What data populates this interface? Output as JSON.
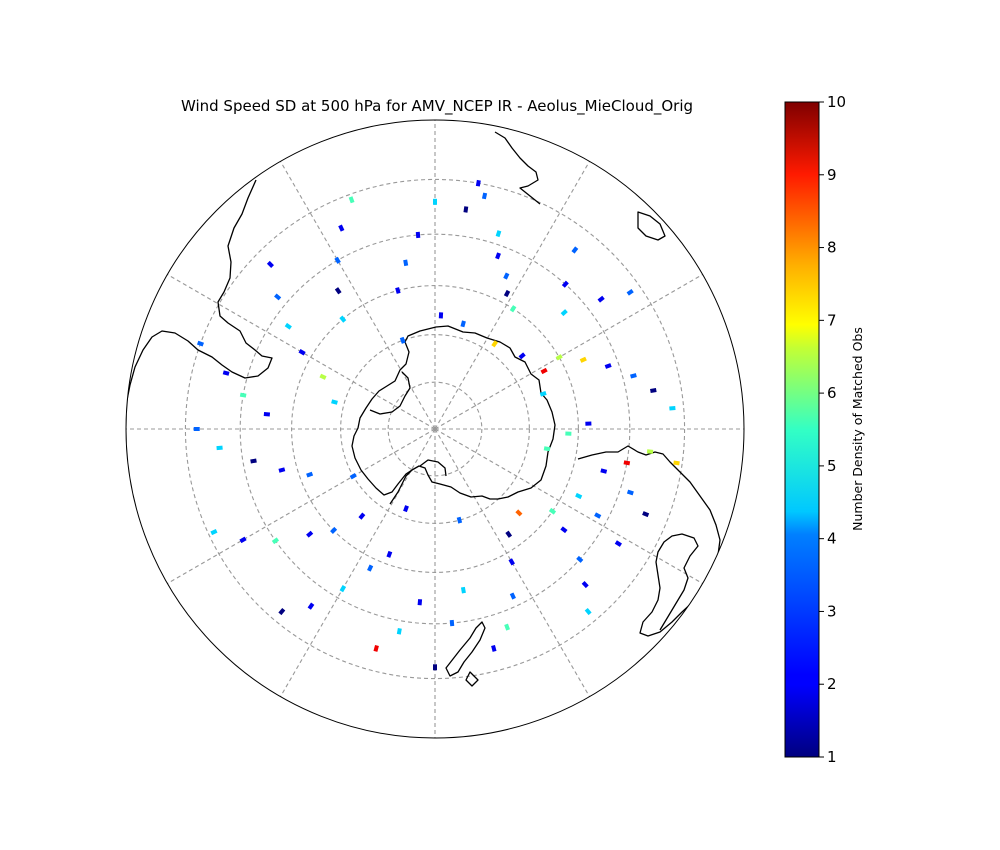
{
  "chart_data": {
    "type": "heatmap",
    "projection": "south-polar-stereographic",
    "title": "Wind Speed SD at 500 hPa for AMV_NCEP IR - Aeolus_MieCloud_Orig",
    "colormap": "jet",
    "colorbar": {
      "label": "Number Density of Matched Obs",
      "range": [
        1,
        10
      ],
      "ticks": [
        "1",
        "2",
        "3",
        "4",
        "5",
        "6",
        "7",
        "8",
        "9",
        "10"
      ],
      "placement": "right"
    },
    "gridlines": {
      "visible": true,
      "latitudes": [
        -80,
        -70,
        -60,
        -50,
        -40
      ],
      "longitude_step": 30
    },
    "cells": [
      {
        "lon": 10,
        "lat": -40,
        "value": 2
      },
      {
        "lon": 12,
        "lat": -42,
        "value": 3
      },
      {
        "lon": 8,
        "lat": -45,
        "value": 1
      },
      {
        "lon": 18,
        "lat": -48,
        "value": 4
      },
      {
        "lon": 20,
        "lat": -52,
        "value": 2
      },
      {
        "lon": 25,
        "lat": -55,
        "value": 3
      },
      {
        "lon": 28,
        "lat": -58,
        "value": 1
      },
      {
        "lon": 33,
        "lat": -60,
        "value": 5
      },
      {
        "lon": 38,
        "lat": -44,
        "value": 3
      },
      {
        "lon": 42,
        "lat": -50,
        "value": 2
      },
      {
        "lon": 48,
        "lat": -54,
        "value": 4
      },
      {
        "lon": 52,
        "lat": -47,
        "value": 2
      },
      {
        "lon": 55,
        "lat": -42,
        "value": 3
      },
      {
        "lon": 60,
        "lat": -60,
        "value": 6
      },
      {
        "lon": 65,
        "lat": -56,
        "value": 7
      },
      {
        "lon": 70,
        "lat": -52,
        "value": 2
      },
      {
        "lon": 75,
        "lat": -48,
        "value": 3
      },
      {
        "lon": 80,
        "lat": -45,
        "value": 1
      },
      {
        "lon": 85,
        "lat": -42,
        "value": 4
      },
      {
        "lon": 88,
        "lat": -58,
        "value": 2
      },
      {
        "lon": 92,
        "lat": -62,
        "value": 5
      },
      {
        "lon": 96,
        "lat": -46,
        "value": 6
      },
      {
        "lon": 98,
        "lat": -41,
        "value": 7
      },
      {
        "lon": 100,
        "lat": -50,
        "value": 9
      },
      {
        "lon": 104,
        "lat": -54,
        "value": 2
      },
      {
        "lon": 108,
        "lat": -48,
        "value": 3
      },
      {
        "lon": 112,
        "lat": -44,
        "value": 1
      },
      {
        "lon": 115,
        "lat": -57,
        "value": 4
      },
      {
        "lon": 118,
        "lat": -52,
        "value": 3
      },
      {
        "lon": 122,
        "lat": -46,
        "value": 2
      },
      {
        "lon": 125,
        "lat": -60,
        "value": 5
      },
      {
        "lon": 128,
        "lat": -56,
        "value": 2
      },
      {
        "lon": 132,
        "lat": -50,
        "value": 3
      },
      {
        "lon": 136,
        "lat": -46,
        "value": 2
      },
      {
        "lon": 140,
        "lat": -42,
        "value": 4
      },
      {
        "lon": 145,
        "lat": -63,
        "value": 1
      },
      {
        "lon": 150,
        "lat": -58,
        "value": 2
      },
      {
        "lon": 155,
        "lat": -52,
        "value": 3
      },
      {
        "lon": 160,
        "lat": -47,
        "value": 5
      },
      {
        "lon": 165,
        "lat": -44,
        "value": 2
      },
      {
        "lon": 170,
        "lat": -56,
        "value": 4
      },
      {
        "lon": 175,
        "lat": -50,
        "value": 3
      },
      {
        "lon": 180,
        "lat": -42,
        "value": 1
      },
      {
        "lon": -175,
        "lat": -54,
        "value": 2
      },
      {
        "lon": -170,
        "lat": -48,
        "value": 4
      },
      {
        "lon": -165,
        "lat": -44,
        "value": 9
      },
      {
        "lon": -160,
        "lat": -62,
        "value": 2
      },
      {
        "lon": -155,
        "lat": -58,
        "value": 3
      },
      {
        "lon": -150,
        "lat": -52,
        "value": 4
      },
      {
        "lon": -145,
        "lat": -46,
        "value": 2
      },
      {
        "lon": -140,
        "lat": -42,
        "value": 1
      },
      {
        "lon": -135,
        "lat": -60,
        "value": 3
      },
      {
        "lon": -130,
        "lat": -56,
        "value": 2
      },
      {
        "lon": -125,
        "lat": -50,
        "value": 5
      },
      {
        "lon": -120,
        "lat": -45,
        "value": 2
      },
      {
        "lon": -115,
        "lat": -41,
        "value": 4
      },
      {
        "lon": -110,
        "lat": -62,
        "value": 3
      },
      {
        "lon": -105,
        "lat": -57,
        "value": 2
      },
      {
        "lon": -100,
        "lat": -52,
        "value": 1
      },
      {
        "lon": -95,
        "lat": -46,
        "value": 4
      },
      {
        "lon": -90,
        "lat": -42,
        "value": 3
      },
      {
        "lon": -85,
        "lat": -55,
        "value": 2
      },
      {
        "lon": -80,
        "lat": -50,
        "value": 5
      },
      {
        "lon": -75,
        "lat": -46,
        "value": 2
      },
      {
        "lon": -70,
        "lat": -40,
        "value": 3
      },
      {
        "lon": -65,
        "lat": -64,
        "value": 6
      },
      {
        "lon": -60,
        "lat": -58,
        "value": 2
      },
      {
        "lon": -55,
        "lat": -53,
        "value": 4
      },
      {
        "lon": -50,
        "lat": -48,
        "value": 3
      },
      {
        "lon": -45,
        "lat": -43,
        "value": 2
      },
      {
        "lon": -40,
        "lat": -60,
        "value": 4
      },
      {
        "lon": -35,
        "lat": -55,
        "value": 1
      },
      {
        "lon": -30,
        "lat": -50,
        "value": 3
      },
      {
        "lon": -25,
        "lat": -45,
        "value": 2
      },
      {
        "lon": -20,
        "lat": -41,
        "value": 5
      },
      {
        "lon": -15,
        "lat": -60,
        "value": 2
      },
      {
        "lon": -10,
        "lat": -55,
        "value": 3
      },
      {
        "lon": -5,
        "lat": -50,
        "value": 2
      },
      {
        "lon": 0,
        "lat": -44,
        "value": 4
      },
      {
        "lon": 3,
        "lat": -66,
        "value": 2
      },
      {
        "lon": 15,
        "lat": -67,
        "value": 3
      },
      {
        "lon": 35,
        "lat": -68,
        "value": 7
      },
      {
        "lon": 50,
        "lat": -66,
        "value": 2
      },
      {
        "lon": 62,
        "lat": -64,
        "value": 9
      },
      {
        "lon": 72,
        "lat": -66,
        "value": 4
      },
      {
        "lon": 135,
        "lat": -65,
        "value": 8
      },
      {
        "lon": 165,
        "lat": -70,
        "value": 3
      },
      {
        "lon": -160,
        "lat": -72,
        "value": 2
      },
      {
        "lon": -120,
        "lat": -70,
        "value": 3
      },
      {
        "lon": -75,
        "lat": -68,
        "value": 4
      },
      {
        "lon": -140,
        "lat": -66,
        "value": 2
      },
      {
        "lon": -20,
        "lat": -70,
        "value": 3
      },
      {
        "lon": 100,
        "lat": -66,
        "value": 5
      }
    ]
  }
}
